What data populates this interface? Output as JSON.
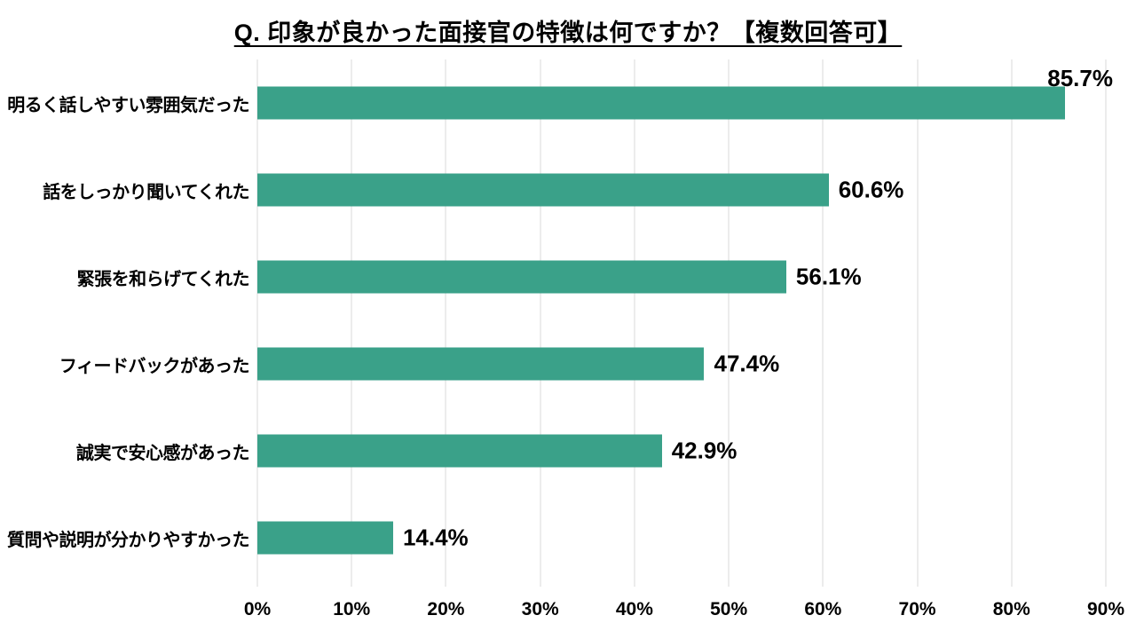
{
  "title": "Q. 印象が良かった面接官の特徴は何ですか？【複数回答可】",
  "chart_data": {
    "type": "bar",
    "orientation": "horizontal",
    "title": "Q. 印象が良かった面接官の特徴は何ですか？【複数回答可】",
    "categories": [
      "明るく話しやすい雰囲気だった",
      "話をしっかり聞いてくれた",
      "緊張を和らげてくれた",
      "フィードバックがあった",
      "誠実で安心感があった",
      "質問や説明が分かりやすかった"
    ],
    "values": [
      85.7,
      60.6,
      56.1,
      47.4,
      42.9,
      14.4
    ],
    "value_labels": [
      "85.7%",
      "60.6%",
      "56.1%",
      "47.4%",
      "42.9%",
      "14.4%"
    ],
    "xlabel": "",
    "ylabel": "",
    "xlim": [
      0,
      90
    ],
    "x_ticks": [
      "0%",
      "10%",
      "20%",
      "30%",
      "40%",
      "50%",
      "60%",
      "70%",
      "80%",
      "90%"
    ],
    "grid": true,
    "legend_position": "none",
    "bar_color": "#3aa189",
    "gridline_color": "#d9d9d9",
    "text_color": "#000000",
    "background_color": "#ffffff"
  }
}
